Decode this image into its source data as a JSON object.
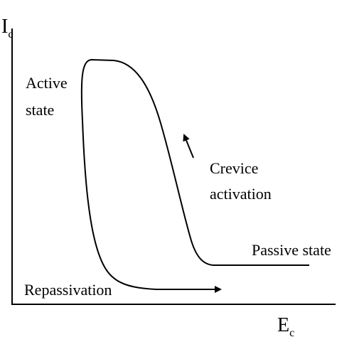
{
  "axes": {
    "y_label": {
      "main": "I",
      "sub": "c"
    },
    "x_label": {
      "main": "E",
      "sub": "c"
    }
  },
  "labels": {
    "active_state": [
      "Active",
      "state"
    ],
    "crevice_activation": [
      "Crevice",
      "activation"
    ],
    "passive_state": "Passive state",
    "repassivation": "Repassivation"
  }
}
